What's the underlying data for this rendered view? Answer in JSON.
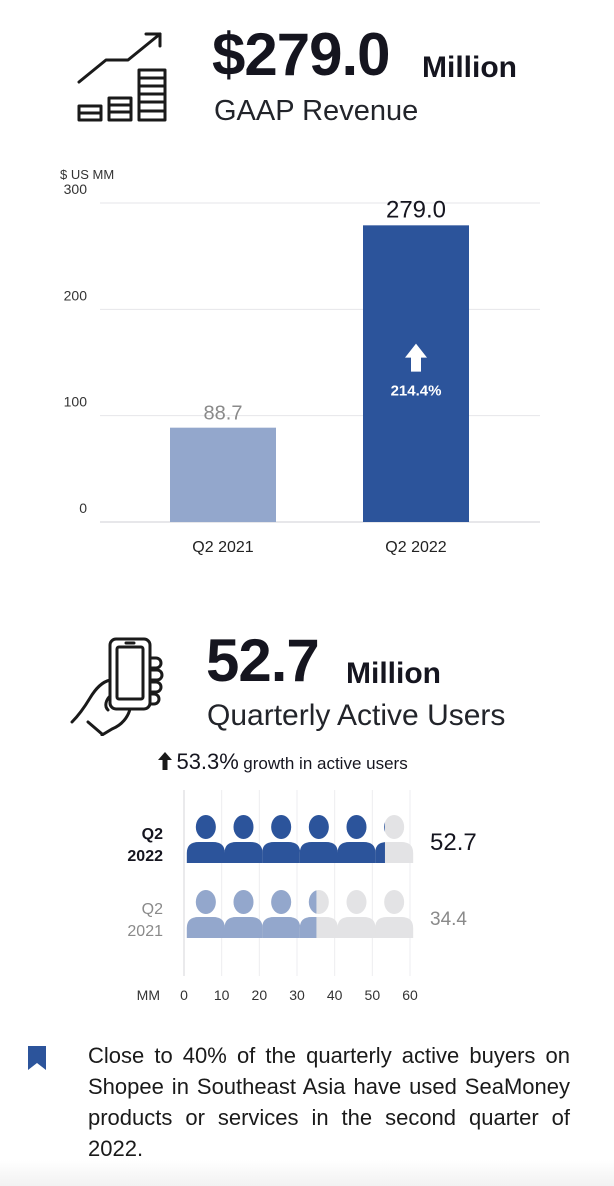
{
  "revenue": {
    "value": "$279.0",
    "unit": "Million",
    "label": "GAAP Revenue",
    "icon": "growth-chart-icon"
  },
  "users": {
    "value": "52.7",
    "unit": "Million",
    "label": "Quarterly Active Users",
    "growth_value": "53.3%",
    "growth_text": "growth in active users",
    "icon": "hand-phone-icon"
  },
  "note": {
    "icon": "bookmark-icon",
    "text": "Close to 40% of the quarterly active buyers on Shopee in Southeast Asia have used SeaMoney products or services in the second quarter of 2022."
  },
  "chart_data": [
    {
      "type": "bar",
      "ylabel": "$ US MM",
      "ylim": [
        0,
        300
      ],
      "yticks": [
        0,
        100,
        200,
        300
      ],
      "grid": true,
      "categories": [
        "Q2 2021",
        "Q2 2022"
      ],
      "values": [
        88.7,
        279.0
      ],
      "value_labels": [
        "88.7",
        "279.0"
      ],
      "colors": [
        "#93a7cc",
        "#2c549b"
      ],
      "value_label_colors": [
        "#8a8a8a",
        "#15151f"
      ],
      "annotation": {
        "text": "214.4%",
        "arrow": "up",
        "on": "Q2 2022"
      }
    },
    {
      "type": "bar",
      "orientation": "horizontal",
      "style": "pictograph",
      "xlabel": "MM",
      "xlim": [
        0,
        60
      ],
      "xticks": [
        0,
        10,
        20,
        30,
        40,
        50,
        60
      ],
      "icon_unit": 10,
      "categories": [
        [
          "Q2",
          "2022"
        ],
        [
          "Q2",
          "2021"
        ]
      ],
      "values": [
        52.7,
        34.4
      ],
      "value_labels": [
        "52.7",
        "34.4"
      ],
      "colors": [
        "#2c549b",
        "#93a7cc"
      ],
      "empty_color": "#e3e3e5",
      "label_colors": [
        "#15151f",
        "#8a8a8a"
      ]
    }
  ]
}
